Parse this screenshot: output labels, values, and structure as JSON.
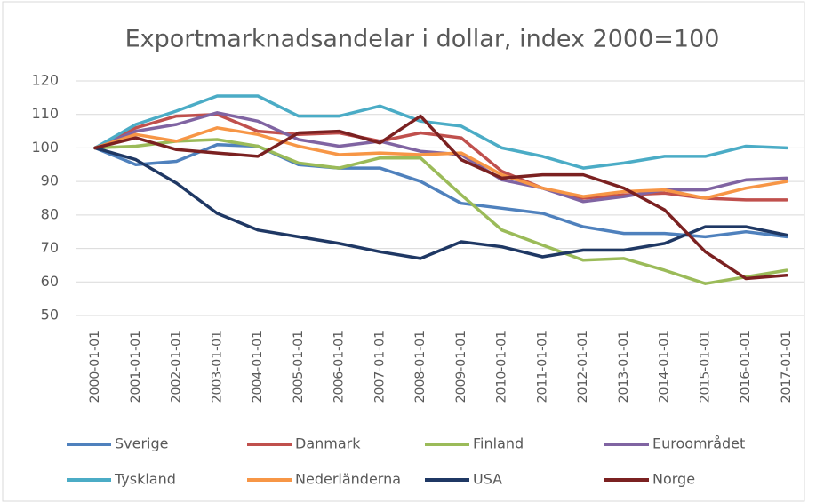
{
  "chart_data": {
    "type": "line",
    "title": "Exportmarknadsandelar i dollar, index 2000=100",
    "categories": [
      "2000-01-01",
      "2001-01-01",
      "2002-01-01",
      "2003-01-01",
      "2004-01-01",
      "2005-01-01",
      "2006-01-01",
      "2007-01-01",
      "2008-01-01",
      "2009-01-01",
      "2010-01-01",
      "2011-01-01",
      "2012-01-01",
      "2013-01-01",
      "2014-01-01",
      "2015-01-01",
      "2016-01-01",
      "2017-01-01"
    ],
    "series": [
      {
        "name": "Sverige",
        "color": "#4f81bd",
        "values": [
          100,
          95,
          96,
          101,
          100.5,
          95,
          94,
          94,
          90,
          83.5,
          82,
          80.5,
          76.5,
          74.5,
          74.5,
          73.5,
          75,
          73.5
        ]
      },
      {
        "name": "Danmark",
        "color": "#c0504d",
        "values": [
          100,
          106,
          109.5,
          110,
          105,
          104,
          104.5,
          102,
          104.5,
          103,
          93,
          88,
          85,
          86,
          86.5,
          85,
          84.5,
          84.5
        ]
      },
      {
        "name": "Finland",
        "color": "#9bbb59",
        "values": [
          100,
          100.5,
          102,
          102.5,
          100.5,
          95.5,
          94,
          97,
          97,
          86,
          75.5,
          71,
          66.5,
          67,
          63.5,
          59.5,
          61.5,
          63.5
        ]
      },
      {
        "name": "Euroområdet",
        "color": "#8064a2",
        "values": [
          100,
          105,
          107,
          110.5,
          108,
          102.5,
          100.5,
          102,
          99,
          98,
          90.5,
          88,
          84,
          85.5,
          87.5,
          87.5,
          90.5,
          91
        ]
      },
      {
        "name": "Tyskland",
        "color": "#4bacc6",
        "values": [
          100,
          107,
          111,
          115.5,
          115.5,
          109.5,
          109.5,
          112.5,
          108,
          106.5,
          100,
          97.5,
          94,
          95.5,
          97.5,
          97.5,
          100.5,
          100
        ]
      },
      {
        "name": "Nederländerna",
        "color": "#f79646",
        "values": [
          100,
          104,
          102,
          106,
          104,
          100.5,
          98,
          98.5,
          98,
          98.5,
          92,
          88,
          85.5,
          87,
          87.5,
          85,
          88,
          90
        ]
      },
      {
        "name": "USA",
        "color": "#1f3864",
        "values": [
          100,
          96.5,
          89.5,
          80.5,
          75.5,
          73.5,
          71.5,
          69,
          67,
          72,
          70.5,
          67.5,
          69.5,
          69.5,
          71.5,
          76.5,
          76.5,
          74
        ]
      },
      {
        "name": "Norge",
        "color": "#7b2121",
        "values": [
          100,
          103,
          99.5,
          98.5,
          97.5,
          104.5,
          105,
          101.5,
          109.5,
          96.5,
          91,
          92,
          92,
          88,
          81.5,
          69,
          61,
          62
        ]
      }
    ],
    "ylim": [
      50,
      120
    ],
    "yticks": [
      50,
      60,
      70,
      80,
      90,
      100,
      110,
      120
    ],
    "grid": true,
    "legend": "bottom"
  }
}
